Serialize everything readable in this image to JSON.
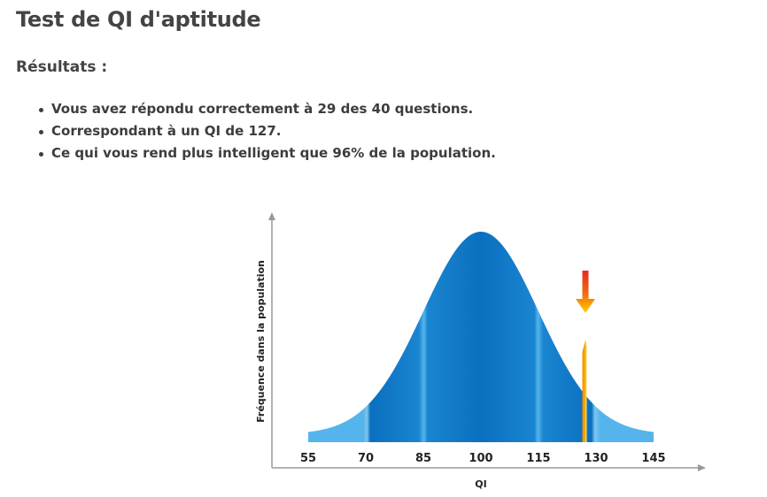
{
  "header": {
    "title": "Test de QI d'aptitude"
  },
  "results": {
    "title": "Résultats :",
    "items": [
      "Vous avez répondu correctement à 29 des 40 questions.",
      "Correspondant à un QI de 127.",
      "Ce qui vous rend plus intelligent que 96% de la population."
    ]
  },
  "chart_data": {
    "type": "area",
    "title": "",
    "xlabel": "QI",
    "ylabel": "Fréquence dans la population",
    "x_ticks": [
      55,
      70,
      85,
      100,
      115,
      130,
      145
    ],
    "xlim": [
      55,
      145
    ],
    "distribution": {
      "mean": 100,
      "sd": 15
    },
    "marker": {
      "value": 127,
      "indicator": "down-arrow"
    },
    "grid": false,
    "colors": {
      "curve_dark": "#0a6fbf",
      "curve_light": "#56b4ec",
      "marker_line": "#f5a300",
      "arrow_top": "#e8281e",
      "arrow_bottom": "#ffd200",
      "axis": "#999999"
    }
  }
}
